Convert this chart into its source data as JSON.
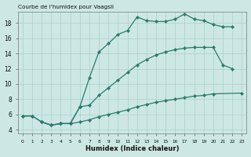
{
  "title": "Courbe de l'humidex pour Vaagsli",
  "xlabel": "Humidex (Indice chaleur)",
  "background_color": "#cde8e4",
  "grid_color": "#aacfca",
  "line_color": "#2a7a6e",
  "xlim": [
    -0.5,
    23.5
  ],
  "ylim": [
    3.5,
    19.5
  ],
  "xticks": [
    0,
    1,
    2,
    3,
    4,
    5,
    6,
    7,
    8,
    9,
    10,
    11,
    12,
    13,
    14,
    15,
    16,
    17,
    18,
    19,
    20,
    21,
    22,
    23
  ],
  "yticks": [
    4,
    6,
    8,
    10,
    12,
    14,
    16,
    18
  ],
  "curves": [
    {
      "x": [
        0,
        1,
        2,
        3,
        4,
        5,
        6,
        7,
        8,
        9,
        10,
        11,
        12,
        13,
        14,
        15,
        16,
        17,
        18,
        19,
        20,
        21,
        22
      ],
      "y": [
        5.8,
        5.8,
        5.0,
        4.6,
        4.8,
        4.8,
        7.0,
        10.8,
        14.2,
        15.3,
        16.5,
        17.0,
        18.8,
        18.3,
        18.2,
        18.2,
        18.5,
        19.2,
        18.5,
        18.3,
        17.8,
        17.5,
        17.5
      ]
    },
    {
      "x": [
        0,
        1,
        2,
        3,
        4,
        5,
        6,
        7,
        8,
        9,
        10,
        11,
        12,
        13,
        14,
        15,
        16,
        17,
        18,
        19,
        20,
        21,
        22
      ],
      "y": [
        5.8,
        5.8,
        5.0,
        4.6,
        4.8,
        4.8,
        7.0,
        7.2,
        8.5,
        9.5,
        10.5,
        11.5,
        12.5,
        13.2,
        13.8,
        14.2,
        14.5,
        14.7,
        14.8,
        14.8,
        14.8,
        12.5,
        12.0
      ]
    },
    {
      "x": [
        2,
        3,
        4,
        5,
        6,
        7,
        8,
        9,
        10,
        11,
        12,
        13,
        14,
        15,
        16,
        17,
        18,
        19,
        20,
        23
      ],
      "y": [
        5.0,
        4.6,
        4.8,
        4.8,
        5.0,
        5.3,
        5.7,
        6.0,
        6.3,
        6.6,
        7.0,
        7.3,
        7.6,
        7.8,
        8.0,
        8.2,
        8.4,
        8.5,
        8.7,
        8.8
      ]
    }
  ]
}
